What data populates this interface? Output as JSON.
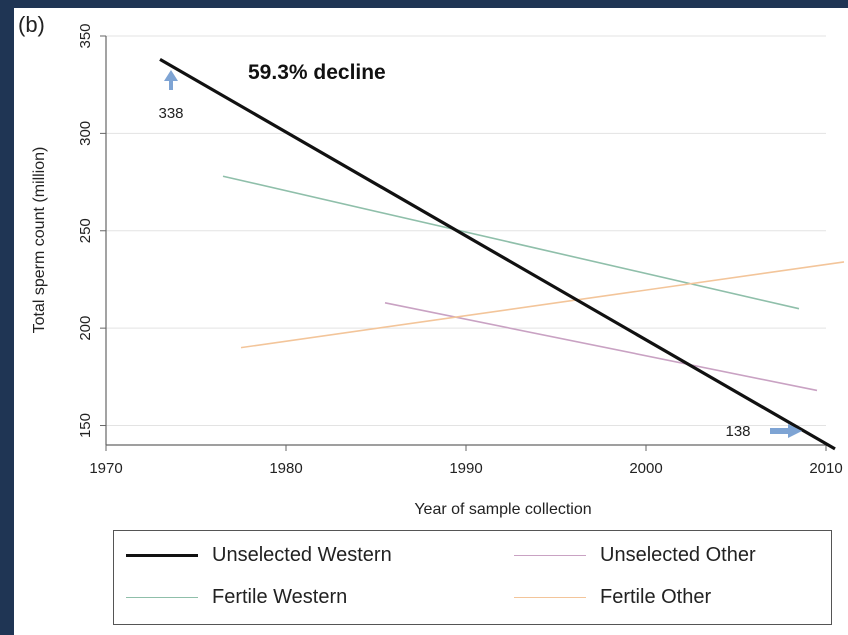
{
  "chart_data": {
    "type": "line",
    "panel_label": "(b)",
    "title": "",
    "xlabel": "Year of sample collection",
    "ylabel": "Total sperm count (million)",
    "xlim": [
      1970,
      2010
    ],
    "ylim": [
      140,
      350
    ],
    "xticks": [
      1970,
      1980,
      1990,
      2000,
      2010
    ],
    "yticks": [
      150,
      200,
      250,
      300,
      350
    ],
    "grid": "horizontal",
    "legend_position": "bottom",
    "series": [
      {
        "name": "Unselected Western",
        "color": "#111111",
        "width": 3.2,
        "x": [
          1973,
          2010.5
        ],
        "y": [
          338,
          138
        ]
      },
      {
        "name": "Unselected Other",
        "color": "#c9a2c3",
        "width": 1.6,
        "x": [
          1985.5,
          2009.5
        ],
        "y": [
          213,
          168
        ]
      },
      {
        "name": "Fertile Western",
        "color": "#8fbfaa",
        "width": 1.6,
        "x": [
          1976.5,
          2008.5
        ],
        "y": [
          278,
          210
        ]
      },
      {
        "name": "Fertile Other",
        "color": "#f3c59a",
        "width": 1.6,
        "x": [
          1977.5,
          2011
        ],
        "y": [
          190,
          234
        ]
      }
    ],
    "annotations": [
      {
        "text": "59.3% decline"
      },
      {
        "text": "338"
      },
      {
        "text": "138"
      }
    ],
    "colors": {
      "arrow": "#7ea4d4",
      "grid": "#e3e3e3",
      "axis": "#666666"
    }
  }
}
